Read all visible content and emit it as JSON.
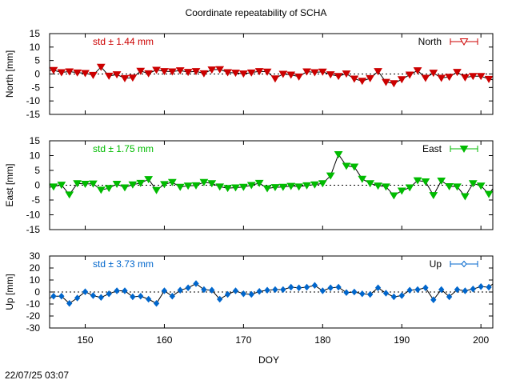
{
  "title": "Coordinate repeatability of SCHA",
  "xlabel": "DOY",
  "timestamp": "22/07/25 03:07",
  "chart_data": {
    "type": "line",
    "title": "Coordinate repeatability of SCHA",
    "xlabel": "DOY",
    "xlim": [
      145.5,
      201.5
    ],
    "xticks": [
      150,
      160,
      170,
      180,
      190,
      200
    ],
    "x": [
      145,
      146,
      147,
      148,
      149,
      150,
      151,
      152,
      153,
      154,
      155,
      156,
      157,
      158,
      159,
      160,
      161,
      162,
      163,
      164,
      165,
      166,
      167,
      168,
      169,
      170,
      171,
      172,
      173,
      174,
      175,
      176,
      177,
      178,
      179,
      180,
      181,
      182,
      183,
      184,
      185,
      186,
      187,
      188,
      189,
      190,
      191,
      192,
      193,
      194,
      195,
      196,
      197,
      198,
      199,
      200,
      201,
      202
    ],
    "panels": [
      {
        "name": "North",
        "ylabel": "North [mm]",
        "ylim": [
          -15,
          15
        ],
        "yticks": [
          -15,
          -10,
          -5,
          0,
          5,
          10,
          15
        ],
        "std_label": "std ± 1.44 mm",
        "color": "#cc0000",
        "marker": "triangle-down",
        "values": [
          1.2,
          1.4,
          0.6,
          0.9,
          0.5,
          0.3,
          -0.4,
          2.6,
          -0.7,
          -0.2,
          -1.6,
          -1.4,
          1.1,
          0.2,
          1.5,
          1.0,
          0.9,
          1.3,
          0.7,
          1.0,
          0.2,
          1.6,
          1.7,
          0.6,
          0.4,
          0.1,
          0.5,
          1.0,
          0.8,
          -1.7,
          0.0,
          -0.3,
          -1.0,
          0.9,
          0.6,
          0.8,
          -0.2,
          -0.8,
          0.1,
          -1.8,
          -2.6,
          -1.6,
          1.0,
          -3.0,
          -3.5,
          -2.0,
          -0.3,
          1.3,
          -1.5,
          0.4,
          -1.5,
          -1.1,
          0.7,
          -1.3,
          -0.8,
          -0.8,
          -1.9,
          -2.4
        ]
      },
      {
        "name": "East",
        "ylabel": "East [mm]",
        "ylim": [
          -15,
          15
        ],
        "yticks": [
          -15,
          -10,
          -5,
          0,
          5,
          10,
          15
        ],
        "std_label": "std ± 1.75 mm",
        "color": "#00bb00",
        "marker": "triangle-down",
        "values": [
          -0.9,
          -0.5,
          0.1,
          -3.2,
          0.6,
          0.4,
          0.5,
          -1.6,
          -1.0,
          0.4,
          -0.8,
          0.2,
          0.7,
          2.0,
          -1.7,
          0.3,
          1.0,
          -0.6,
          -0.2,
          -0.1,
          1.0,
          0.6,
          -0.5,
          -1.0,
          -0.8,
          -0.6,
          0.0,
          0.7,
          -1.1,
          -0.7,
          -0.6,
          -0.3,
          -0.5,
          -0.1,
          0.2,
          0.6,
          3.2,
          10.4,
          6.5,
          6.2,
          2.1,
          0.6,
          -0.2,
          -0.5,
          -3.5,
          -1.9,
          -0.8,
          1.6,
          1.2,
          -3.4,
          1.5,
          -0.4,
          -0.5,
          -3.8,
          0.6,
          -0.2,
          -3.0,
          0.6
        ]
      },
      {
        "name": "Up",
        "ylabel": "Up [mm]",
        "ylim": [
          -30,
          30
        ],
        "yticks": [
          -30,
          -20,
          -10,
          0,
          10,
          20,
          30
        ],
        "std_label": "std ± 3.73 mm",
        "color": "#0066cc",
        "marker": "diamond",
        "values": [
          -7.0,
          -3.5,
          -3.5,
          -9.5,
          -5.0,
          0.2,
          -3.0,
          -4.5,
          -1.5,
          1.0,
          1.0,
          -4.0,
          -3.5,
          -6.0,
          -9.5,
          1.0,
          -3.5,
          1.5,
          3.5,
          7.0,
          2.0,
          1.5,
          -6.0,
          -2.0,
          1.0,
          -1.5,
          -2.0,
          0.5,
          1.5,
          2.0,
          2.0,
          4.0,
          3.5,
          4.0,
          5.5,
          1.0,
          3.5,
          4.0,
          -0.5,
          0.0,
          -1.5,
          -2.0,
          3.5,
          -1.0,
          -4.0,
          -3.0,
          1.5,
          2.0,
          3.5,
          -6.5,
          2.0,
          -4.0,
          2.0,
          1.0,
          2.5,
          4.5,
          4.0,
          9.5
        ]
      }
    ]
  }
}
